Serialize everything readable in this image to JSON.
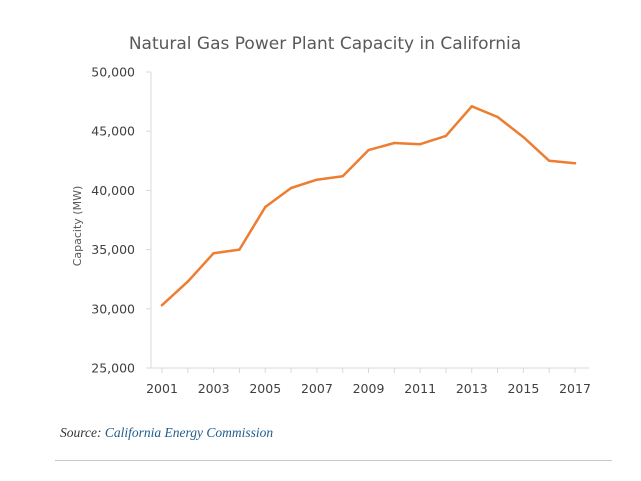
{
  "chart_data": {
    "type": "line",
    "title": "Natural Gas Power Plant Capacity in California",
    "xlabel": "",
    "ylabel": "Capacity (MW)",
    "ylim": [
      25000,
      50000
    ],
    "y_ticks": [
      25000,
      30000,
      35000,
      40000,
      45000,
      50000
    ],
    "y_tick_labels": [
      "25,000",
      "30,000",
      "35,000",
      "40,000",
      "45,000",
      "50,000"
    ],
    "x_tick_labels": [
      "2001",
      "2003",
      "2005",
      "2007",
      "2009",
      "2011",
      "2013",
      "2015",
      "2017"
    ],
    "x": [
      2001,
      2002,
      2003,
      2004,
      2005,
      2006,
      2007,
      2008,
      2009,
      2010,
      2011,
      2012,
      2013,
      2014,
      2015,
      2016,
      2017
    ],
    "series": [
      {
        "values": [
          30300,
          32300,
          34700,
          35000,
          38600,
          40200,
          40900,
          41200,
          43400,
          44000,
          43900,
          44600,
          47100,
          46200,
          44500,
          42500,
          42300
        ]
      }
    ],
    "grid": false,
    "line_color": "#ED7D31"
  },
  "source": {
    "prefix": "Source:",
    "link_text": "California Energy Commission"
  }
}
